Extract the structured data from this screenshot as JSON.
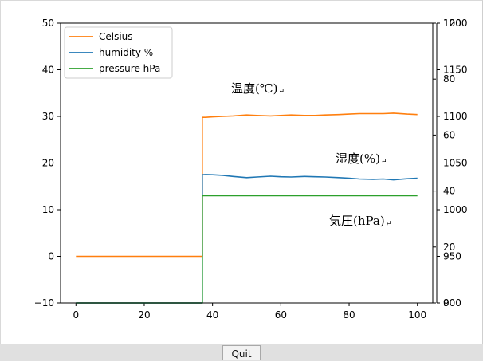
{
  "chart_data": {
    "type": "line",
    "x_ticks": [
      "0",
      "20",
      "40",
      "60",
      "80",
      "100"
    ],
    "xlim": [
      -4.5,
      104.5
    ],
    "y_left": {
      "ylim": [
        -10,
        50
      ],
      "ticks": [
        "−10",
        "0",
        "10",
        "20",
        "30",
        "40",
        "50"
      ],
      "tick_values": [
        -10,
        0,
        10,
        20,
        30,
        40,
        50
      ]
    },
    "y_right_outer": {
      "ylim": [
        900,
        1200
      ],
      "ticks": [
        "900",
        "950",
        "1000",
        "1050",
        "1100",
        "1150",
        "1200"
      ],
      "tick_values": [
        900,
        950,
        1000,
        1050,
        1100,
        1150,
        1200
      ]
    },
    "y_right_inner": {
      "ylim": [
        0,
        100
      ],
      "ticks": [
        "0",
        "20",
        "40",
        "60",
        "80",
        "100"
      ],
      "tick_values": [
        0,
        20,
        40,
        60,
        80,
        100
      ]
    },
    "series": [
      {
        "name": "Celsius",
        "color": "#ff7f0e",
        "axis": "left",
        "x": [
          0,
          37,
          37,
          38,
          40,
          43,
          46,
          50,
          53,
          57,
          60,
          63,
          67,
          70,
          73,
          77,
          80,
          83,
          87,
          90,
          93,
          97,
          100
        ],
        "y": [
          0,
          0,
          29.8,
          29.8,
          29.9,
          30.0,
          30.1,
          30.3,
          30.2,
          30.1,
          30.2,
          30.3,
          30.2,
          30.2,
          30.3,
          30.4,
          30.5,
          30.6,
          30.6,
          30.6,
          30.7,
          30.5,
          30.4
        ]
      },
      {
        "name": "humidity %",
        "color": "#1f77b4",
        "axis": "right_inner",
        "x": [
          0,
          37,
          37,
          38,
          40,
          43,
          46,
          50,
          53,
          57,
          60,
          63,
          67,
          70,
          73,
          77,
          80,
          83,
          87,
          90,
          93,
          97,
          100
        ],
        "y": [
          0,
          0,
          45.8,
          45.9,
          45.8,
          45.6,
          45.2,
          44.8,
          45.0,
          45.3,
          45.1,
          45.0,
          45.2,
          45.1,
          45.0,
          44.8,
          44.6,
          44.3,
          44.2,
          44.3,
          44.0,
          44.4,
          44.6
        ]
      },
      {
        "name": "pressure hPa",
        "color": "#2ca02c",
        "axis": "right_outer",
        "x": [
          0,
          37,
          37,
          38,
          50,
          60,
          70,
          80,
          90,
          100
        ],
        "y": [
          900,
          900,
          1015,
          1015,
          1015,
          1015,
          1015,
          1015,
          1015,
          1015
        ]
      }
    ],
    "legend": {
      "position": "top-left",
      "entries": [
        "Celsius",
        "humidity %",
        "pressure hPa"
      ]
    },
    "annotations": [
      {
        "text": "温度(℃)",
        "color": "#c8981f"
      },
      {
        "text": "湿度(%)",
        "color": "#3a5f96"
      },
      {
        "text": "気圧(hPa)",
        "color": "#3e8e3c"
      }
    ],
    "return_mark": "↵"
  },
  "toolbar": {
    "quit_label": "Quit"
  }
}
